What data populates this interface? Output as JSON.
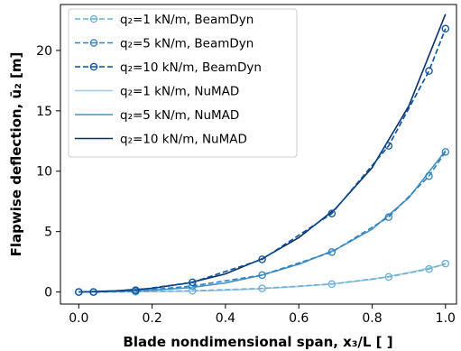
{
  "chart_data": {
    "type": "line",
    "xlabel": "Blade nondimensional span, x₃/L  [ ]",
    "ylabel": "Flapwise deflection, ū₂ [m]",
    "xlim": [
      -0.05,
      1.03
    ],
    "ylim": [
      -1.0,
      23.8
    ],
    "x_ticks": [
      0.0,
      0.2,
      0.4,
      0.6,
      0.8,
      1.0
    ],
    "x_tick_labels": [
      "0.0",
      "0.2",
      "0.4",
      "0.6",
      "0.8",
      "1.0"
    ],
    "y_ticks": [
      0,
      5,
      10,
      15,
      20
    ],
    "y_tick_labels": [
      "0",
      "5",
      "10",
      "15",
      "20"
    ],
    "grid": false,
    "legend_placement": "top-left",
    "series": [
      {
        "name": "q₂=1 kN/m, BeamDyn",
        "style": "dashed-circle",
        "color": "#6baed6",
        "x": [
          0.0,
          0.04,
          0.155,
          0.31,
          0.5,
          0.69,
          0.845,
          0.955,
          1.0
        ],
        "y": [
          0.0,
          0.0,
          0.02,
          0.1,
          0.3,
          0.65,
          1.25,
          1.9,
          2.35
        ]
      },
      {
        "name": "q₂=5 kN/m, BeamDyn",
        "style": "dashed-circle",
        "color": "#3182bd",
        "x": [
          0.0,
          0.04,
          0.155,
          0.31,
          0.5,
          0.69,
          0.845,
          0.955,
          1.0
        ],
        "y": [
          0.0,
          0.0,
          0.08,
          0.5,
          1.4,
          3.3,
          6.2,
          9.6,
          11.6
        ]
      },
      {
        "name": "q₂=10 kN/m, BeamDyn",
        "style": "dashed-circle",
        "color": "#08519c",
        "x": [
          0.0,
          0.04,
          0.155,
          0.31,
          0.5,
          0.69,
          0.845,
          0.955,
          1.0
        ],
        "y": [
          0.0,
          0.0,
          0.15,
          0.8,
          2.7,
          6.5,
          12.1,
          18.3,
          21.8
        ]
      },
      {
        "name": "q₂=1 kN/m, NuMAD",
        "style": "solid",
        "color": "#9ecae1",
        "x": [
          0.0,
          0.1,
          0.2,
          0.3,
          0.4,
          0.5,
          0.6,
          0.7,
          0.8,
          0.9,
          1.0
        ],
        "y": [
          0.0,
          0.01,
          0.03,
          0.07,
          0.15,
          0.28,
          0.46,
          0.7,
          1.05,
          1.6,
          2.3
        ]
      },
      {
        "name": "q₂=5 kN/m, NuMAD",
        "style": "solid",
        "color": "#4292c6",
        "x": [
          0.0,
          0.1,
          0.2,
          0.3,
          0.4,
          0.5,
          0.6,
          0.7,
          0.8,
          0.9,
          1.0
        ],
        "y": [
          0.0,
          0.05,
          0.15,
          0.35,
          0.75,
          1.4,
          2.3,
          3.5,
          5.2,
          7.8,
          11.7
        ]
      },
      {
        "name": "q₂=10 kN/m, NuMAD",
        "style": "solid",
        "color": "#08306b",
        "x": [
          0.0,
          0.1,
          0.2,
          0.3,
          0.4,
          0.5,
          0.6,
          0.7,
          0.8,
          0.9,
          1.0
        ],
        "y": [
          0.0,
          0.1,
          0.3,
          0.75,
          1.5,
          2.75,
          4.5,
          6.9,
          10.3,
          15.4,
          23.0
        ]
      }
    ]
  }
}
